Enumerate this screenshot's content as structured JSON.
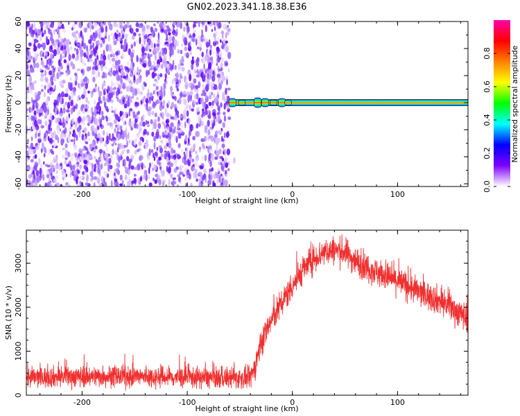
{
  "chart_data": [
    {
      "type": "heatmap",
      "title": "GN02.2023.341.18.38.E36",
      "xlabel": "Height of straight line (km)",
      "ylabel": "Frequency (Hz)",
      "xlim": [
        -253,
        167
      ],
      "ylim": [
        -62,
        60
      ],
      "xticks": [
        -200,
        -100,
        0,
        100
      ],
      "yticks": [
        -60,
        -40,
        -20,
        0,
        20,
        40,
        60
      ],
      "grid": false,
      "noise_region_x": [
        -253,
        -60
      ],
      "signal_line": {
        "frequency": 0,
        "x_start": -60,
        "x_end": 167
      },
      "colorbar": {
        "label": "Normalized spectral amplitude",
        "range": [
          0,
          1
        ],
        "ticks": [
          0.0,
          0.2,
          0.4,
          0.6,
          0.8
        ],
        "colormap": [
          "#ffffff",
          "#8000ff",
          "#0000ff",
          "#00ffff",
          "#00ff00",
          "#ffff00",
          "#ff8000",
          "#ff0000",
          "#ff00aa"
        ]
      }
    },
    {
      "type": "line",
      "xlabel": "Height of straight line (km)",
      "ylabel": "SNR (10 * v/v)",
      "xlim": [
        -253,
        167
      ],
      "ylim": [
        0,
        3750
      ],
      "xticks": [
        -200,
        -100,
        0,
        100
      ],
      "yticks": [
        0,
        1000,
        2000,
        3000
      ],
      "grid": false,
      "series": [
        {
          "color": "#f03030",
          "x": [
            -253,
            -220,
            -180,
            -140,
            -100,
            -60,
            -40,
            -35,
            -30,
            -20,
            -10,
            0,
            10,
            20,
            30,
            40,
            50,
            60,
            80,
            100,
            120,
            140,
            167
          ],
          "y": [
            400,
            420,
            430,
            420,
            400,
            390,
            380,
            700,
            1200,
            1700,
            2100,
            2500,
            2850,
            3100,
            3250,
            3300,
            3250,
            3050,
            2800,
            2600,
            2350,
            2150,
            1750
          ]
        }
      ]
    }
  ]
}
